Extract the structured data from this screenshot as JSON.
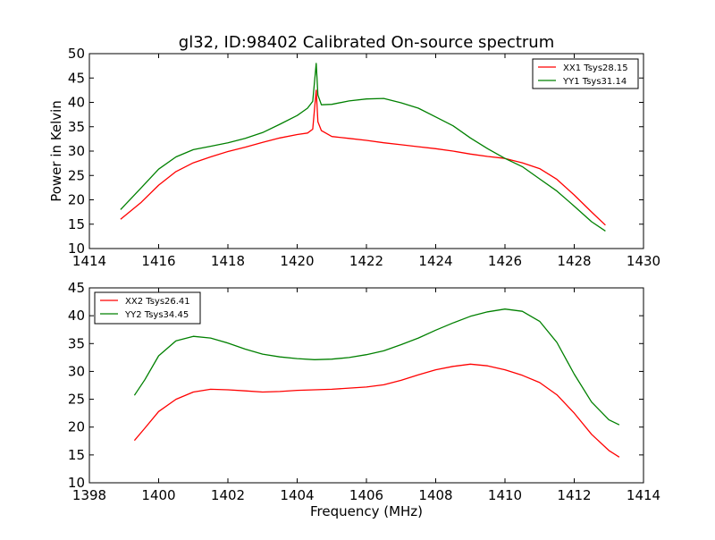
{
  "figure": {
    "title": "gl32, ID:98402 Calibrated On-source spectrum",
    "ylabel": "Power in Kelvin",
    "xlabel": "Frequency (MHz)"
  },
  "colors": {
    "red": "#ff0000",
    "green": "#008000"
  },
  "chart_data": [
    {
      "type": "line",
      "title": "gl32, ID:98402 Calibrated On-source spectrum",
      "xlabel": "",
      "ylabel": "Power in Kelvin",
      "xlim": [
        1414,
        1430
      ],
      "ylim": [
        10,
        50
      ],
      "xticks": [
        1414,
        1416,
        1418,
        1420,
        1422,
        1424,
        1426,
        1428,
        1430
      ],
      "yticks": [
        10,
        15,
        20,
        25,
        30,
        35,
        40,
        45,
        50
      ],
      "grid": false,
      "legend_position": "top-right",
      "series": [
        {
          "name": "XX1 Tsys28.15",
          "color": "#ff0000",
          "x": [
            1414.9,
            1415.5,
            1416.0,
            1416.5,
            1417.0,
            1417.5,
            1418.0,
            1418.5,
            1419.0,
            1419.5,
            1420.0,
            1420.3,
            1420.45,
            1420.55,
            1420.6,
            1420.7,
            1421.0,
            1421.5,
            1422.0,
            1422.5,
            1423.0,
            1423.5,
            1424.0,
            1424.5,
            1425.0,
            1425.5,
            1426.0,
            1426.5,
            1427.0,
            1427.5,
            1428.0,
            1428.5,
            1428.9
          ],
          "y": [
            16.0,
            19.5,
            23.0,
            25.8,
            27.6,
            28.8,
            29.9,
            30.8,
            31.8,
            32.7,
            33.4,
            33.7,
            34.5,
            42.5,
            36.0,
            34.2,
            33.0,
            32.6,
            32.2,
            31.7,
            31.3,
            30.9,
            30.5,
            30.0,
            29.4,
            28.9,
            28.5,
            27.6,
            26.4,
            24.2,
            21.0,
            17.5,
            14.8
          ]
        },
        {
          "name": "YY1 Tsys31.14",
          "color": "#008000",
          "x": [
            1414.9,
            1415.5,
            1416.0,
            1416.5,
            1417.0,
            1417.5,
            1418.0,
            1418.5,
            1419.0,
            1419.5,
            1420.0,
            1420.3,
            1420.45,
            1420.55,
            1420.6,
            1420.7,
            1421.0,
            1421.5,
            1422.0,
            1422.5,
            1423.0,
            1423.5,
            1424.0,
            1424.5,
            1425.0,
            1425.5,
            1426.0,
            1426.5,
            1427.0,
            1427.5,
            1428.0,
            1428.5,
            1428.9
          ],
          "y": [
            18.0,
            22.5,
            26.3,
            28.8,
            30.3,
            31.0,
            31.7,
            32.6,
            33.8,
            35.5,
            37.3,
            38.8,
            40.2,
            48.0,
            41.5,
            39.5,
            39.6,
            40.3,
            40.7,
            40.8,
            39.9,
            38.8,
            37.0,
            35.2,
            32.7,
            30.5,
            28.5,
            26.8,
            24.3,
            21.8,
            18.7,
            15.5,
            13.6
          ]
        }
      ]
    },
    {
      "type": "line",
      "title": "",
      "xlabel": "Frequency (MHz)",
      "ylabel": "",
      "xlim": [
        1398,
        1414
      ],
      "ylim": [
        10,
        45
      ],
      "xticks": [
        1398,
        1400,
        1402,
        1404,
        1406,
        1408,
        1410,
        1412,
        1414
      ],
      "yticks": [
        10,
        15,
        20,
        25,
        30,
        35,
        40,
        45
      ],
      "grid": false,
      "legend_position": "top-left",
      "series": [
        {
          "name": "XX2 Tsys26.41",
          "color": "#ff0000",
          "x": [
            1399.3,
            1399.6,
            1400.0,
            1400.5,
            1401.0,
            1401.5,
            1402.0,
            1402.5,
            1403.0,
            1403.5,
            1404.0,
            1404.5,
            1405.0,
            1405.5,
            1406.0,
            1406.5,
            1407.0,
            1407.5,
            1408.0,
            1408.5,
            1409.0,
            1409.5,
            1410.0,
            1410.5,
            1411.0,
            1411.5,
            1412.0,
            1412.5,
            1413.0,
            1413.3
          ],
          "y": [
            17.6,
            19.8,
            22.8,
            25.0,
            26.3,
            26.8,
            26.7,
            26.5,
            26.3,
            26.4,
            26.6,
            26.7,
            26.8,
            27.0,
            27.2,
            27.6,
            28.4,
            29.4,
            30.3,
            30.9,
            31.3,
            31.0,
            30.3,
            29.3,
            28.0,
            25.8,
            22.5,
            18.7,
            15.8,
            14.6
          ]
        },
        {
          "name": "YY2 Tsys34.45",
          "color": "#008000",
          "x": [
            1399.3,
            1399.6,
            1400.0,
            1400.5,
            1401.0,
            1401.5,
            1402.0,
            1402.5,
            1403.0,
            1403.5,
            1404.0,
            1404.5,
            1405.0,
            1405.5,
            1406.0,
            1406.5,
            1407.0,
            1407.5,
            1408.0,
            1408.5,
            1409.0,
            1409.5,
            1410.0,
            1410.5,
            1411.0,
            1411.5,
            1412.0,
            1412.5,
            1413.0,
            1413.3
          ],
          "y": [
            25.7,
            28.5,
            32.8,
            35.5,
            36.3,
            36.0,
            35.1,
            34.0,
            33.1,
            32.6,
            32.3,
            32.1,
            32.2,
            32.5,
            33.0,
            33.7,
            34.8,
            36.0,
            37.4,
            38.7,
            39.9,
            40.7,
            41.2,
            40.8,
            39.0,
            35.2,
            29.5,
            24.5,
            21.3,
            20.4
          ]
        }
      ]
    }
  ]
}
